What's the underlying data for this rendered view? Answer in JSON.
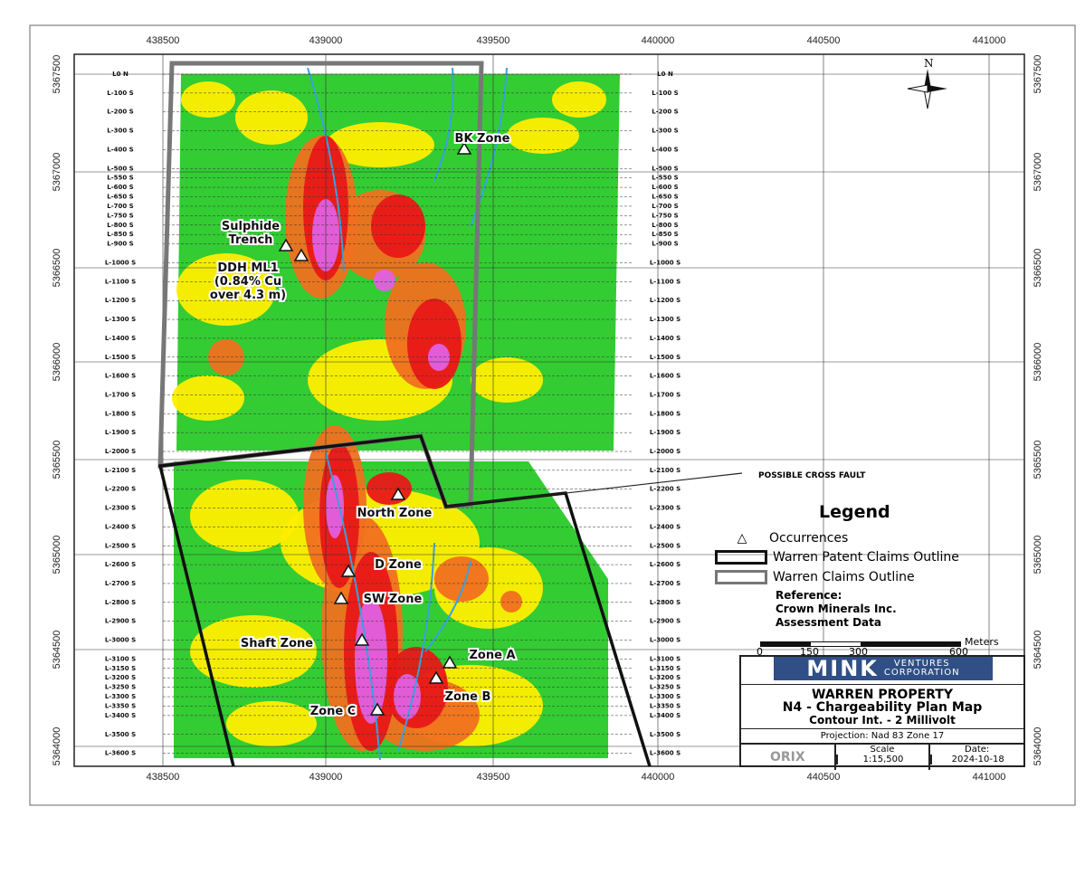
{
  "title_block": {
    "company": "MINK",
    "company_suffix": "VENTURES",
    "company_sub": "CORPORATION",
    "property": "WARREN PROPERTY",
    "map_title": "N4 - Chargeability Plan Map",
    "contour": "Contour Int. - 2 Millivolt",
    "projection": "Projection: Nad 83 Zone 17",
    "scale_label": "Scale",
    "scale": "1:15,500",
    "date_label": "Date:",
    "date": "2024-10-18",
    "logo_text": "ORIX"
  },
  "legend": {
    "title": "Legend",
    "items": [
      "Occurrences",
      "Warren Patent Claims Outline",
      "Warren Claims Outline"
    ],
    "reference": [
      "Reference:",
      "Crown Minerals Inc.",
      "Assessment Data"
    ]
  },
  "scale_bar": {
    "ticks": [
      "0",
      "150",
      "300",
      "600"
    ],
    "unit": "Meters"
  },
  "north_label": "N",
  "fault_label": "POSSIBLE CROSS FAULT",
  "eastings": [
    "438500",
    "439000",
    "439500",
    "440000",
    "440500",
    "441000"
  ],
  "northings": [
    "5367500",
    "5367000",
    "5366500",
    "5366000",
    "5365500",
    "5365000",
    "5364500",
    "5364000"
  ],
  "lines": [
    "L0 N",
    "L-100 S",
    "L-200 S",
    "L-300 S",
    "L-400 S",
    "L-500 S",
    "L-550 S",
    "L-600 S",
    "L-650 S",
    "L-700 S",
    "L-750 S",
    "L-800 S",
    "L-850 S",
    "L-900 S",
    "L-1000 S",
    "L-1100 S",
    "L-1200 S",
    "L-1300 S",
    "L-1400 S",
    "L-1500 S",
    "L-1600 S",
    "L-1700 S",
    "L-1800 S",
    "L-1900 S",
    "L-2000 S",
    "L-2100 S",
    "L-2200 S",
    "L-2300 S",
    "L-2400 S",
    "L-2500 S",
    "L-2600 S",
    "L-2700 S",
    "L-2800 S",
    "L-2900 S",
    "L-3000 S",
    "L-3100 S",
    "L-3150 S",
    "L-3200 S",
    "L-3250 S",
    "L-3300 S",
    "L-3350 S",
    "L-3400 S",
    "L-3500 S",
    "L-3600 S"
  ],
  "zones": [
    {
      "name": "BK Zone",
      "lines": [
        "BK Zone"
      ]
    },
    {
      "name": "Sulphide Trench",
      "lines": [
        "Sulphide",
        "Trench"
      ]
    },
    {
      "name": "DDH ML1",
      "lines": [
        "DDH ML1",
        "(0.84% Cu",
        "over 4.3 m)"
      ]
    },
    {
      "name": "North Zone",
      "lines": [
        "North Zone"
      ]
    },
    {
      "name": "D Zone",
      "lines": [
        "D Zone"
      ]
    },
    {
      "name": "SW Zone",
      "lines": [
        "SW Zone"
      ]
    },
    {
      "name": "Shaft Zone",
      "lines": [
        "Shaft Zone"
      ]
    },
    {
      "name": "Zone A",
      "lines": [
        "Zone A"
      ]
    },
    {
      "name": "Zone B",
      "lines": [
        "Zone B"
      ]
    },
    {
      "name": "Zone C",
      "lines": [
        "Zone C"
      ]
    }
  ],
  "colors": {
    "low": "#33cc33",
    "mid": "#ffee00",
    "orange": "#f07020",
    "red": "#e81818",
    "high": "#e060e0",
    "patent": "#111111",
    "claims": "#777777",
    "streams": "#3aa0e0"
  }
}
